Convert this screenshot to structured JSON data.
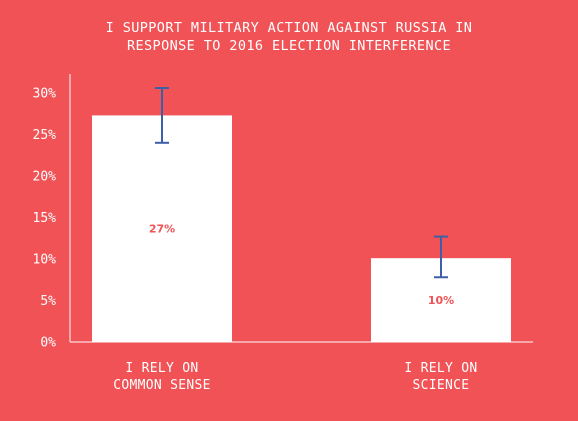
{
  "colors": {
    "background": "#f05256",
    "bar": "#ffffff",
    "axis": "#ffffff",
    "error_bar": "#3d5fa8",
    "data_label": "#f05256"
  },
  "chart_data": {
    "type": "bar",
    "title_lines": [
      "I SUPPORT MILITARY ACTION AGAINST RUSSIA IN",
      "RESPONSE TO 2016 ELECTION INTERFERENCE"
    ],
    "categories": [
      {
        "lines": [
          "I RELY ON",
          "COMMON SENSE"
        ]
      },
      {
        "lines": [
          "I RELY ON",
          "SCIENCE"
        ]
      }
    ],
    "values": [
      27.3,
      10.1
    ],
    "data_labels": [
      "27%",
      "10%"
    ],
    "error_bars": [
      {
        "low": 24.0,
        "high": 30.6
      },
      {
        "low": 7.8,
        "high": 12.7
      }
    ],
    "yticks": [
      0,
      5,
      10,
      15,
      20,
      25,
      30
    ],
    "ytick_labels": [
      "0%",
      "5%",
      "10%",
      "15%",
      "20%",
      "25%",
      "30%"
    ],
    "ylim": [
      0,
      32
    ],
    "grid": false,
    "legend": "none"
  }
}
